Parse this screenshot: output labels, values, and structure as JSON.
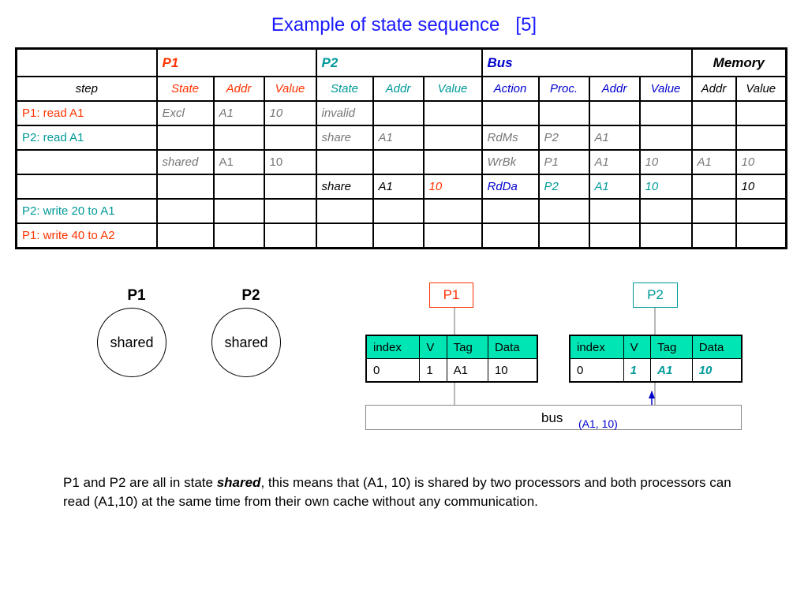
{
  "title": "Example of state sequence   [5]",
  "table": {
    "groups": {
      "p1": "P1",
      "p2": "P2",
      "bus": "Bus",
      "memory": "Memory"
    },
    "step_header": "step",
    "columns": {
      "p1_state": "State",
      "p1_addr": "Addr",
      "p1_value": "Value",
      "p2_state": "State",
      "p2_addr": "Addr",
      "p2_value": "Value",
      "bus_action": "Action",
      "bus_proc": "Proc.",
      "bus_addr": "Addr",
      "bus_value": "Value",
      "mem_addr": "Addr",
      "mem_value": "Value"
    },
    "rows": [
      {
        "step": "P1: read A1",
        "p1_state": "Excl",
        "p1_addr": "A1",
        "p1_value": "10",
        "p2_state": "invalid",
        "p2_addr": "",
        "p2_value": "",
        "bus_action": "",
        "bus_proc": "",
        "bus_addr": "",
        "bus_value": "",
        "mem_addr": "",
        "mem_value": ""
      },
      {
        "step": "P2: read A1",
        "p1_state": "",
        "p1_addr": "",
        "p1_value": "",
        "p2_state": "share",
        "p2_addr": "A1",
        "p2_value": "",
        "bus_action": "RdMs",
        "bus_proc": "P2",
        "bus_addr": "A1",
        "bus_value": "",
        "mem_addr": "",
        "mem_value": ""
      },
      {
        "step": "",
        "p1_state": "shared",
        "p1_addr": "A1",
        "p1_value": "10",
        "p2_state": "",
        "p2_addr": "",
        "p2_value": "",
        "bus_action": "WrBk",
        "bus_proc": "P1",
        "bus_addr": "A1",
        "bus_value": "10",
        "mem_addr": "A1",
        "mem_value": "10"
      },
      {
        "step": "",
        "p1_state": "",
        "p1_addr": "",
        "p1_value": "",
        "p2_state": "share",
        "p2_addr": "A1",
        "p2_value": "10",
        "bus_action": "RdDa",
        "bus_proc": "P2",
        "bus_addr": "A1",
        "bus_value": "10",
        "mem_addr": "",
        "mem_value": "10"
      },
      {
        "step": "P2: write 20 to A1",
        "p1_state": "",
        "p1_addr": "",
        "p1_value": "",
        "p2_state": "",
        "p2_addr": "",
        "p2_value": "",
        "bus_action": "",
        "bus_proc": "",
        "bus_addr": "",
        "bus_value": "",
        "mem_addr": "",
        "mem_value": ""
      },
      {
        "step": "P1: write 40 to A2",
        "p1_state": "",
        "p1_addr": "",
        "p1_value": "",
        "p2_state": "",
        "p2_addr": "",
        "p2_value": "",
        "bus_action": "",
        "bus_proc": "",
        "bus_addr": "",
        "bus_value": "",
        "mem_addr": "",
        "mem_value": ""
      }
    ]
  },
  "state_diagram": {
    "p1": {
      "label": "P1",
      "state": "shared"
    },
    "p2": {
      "label": "P2",
      "state": "shared"
    }
  },
  "processors": {
    "p1": "P1",
    "p2": "P2"
  },
  "cache_headers": {
    "index": "index",
    "v": "V",
    "tag": "Tag",
    "data": "Data"
  },
  "cache_p1": {
    "index": "0",
    "v": "1",
    "tag": "A1",
    "data": "10"
  },
  "cache_p2": {
    "index": "0",
    "v": "1",
    "tag": "A1",
    "data": "10"
  },
  "bus": {
    "label": "bus",
    "value": "(A1, 10)"
  },
  "description": {
    "before": "P1 and P2 are all in state ",
    "emph": "shared",
    "after": ", this means that (A1, 10) is shared by two processors and both processors can read (A1,10) at the same time from their own cache without any communication."
  },
  "colors": {
    "p1": "#ff3300",
    "p2": "#009999",
    "bus": "#0000cc",
    "cache_header": "#00e5b4"
  }
}
